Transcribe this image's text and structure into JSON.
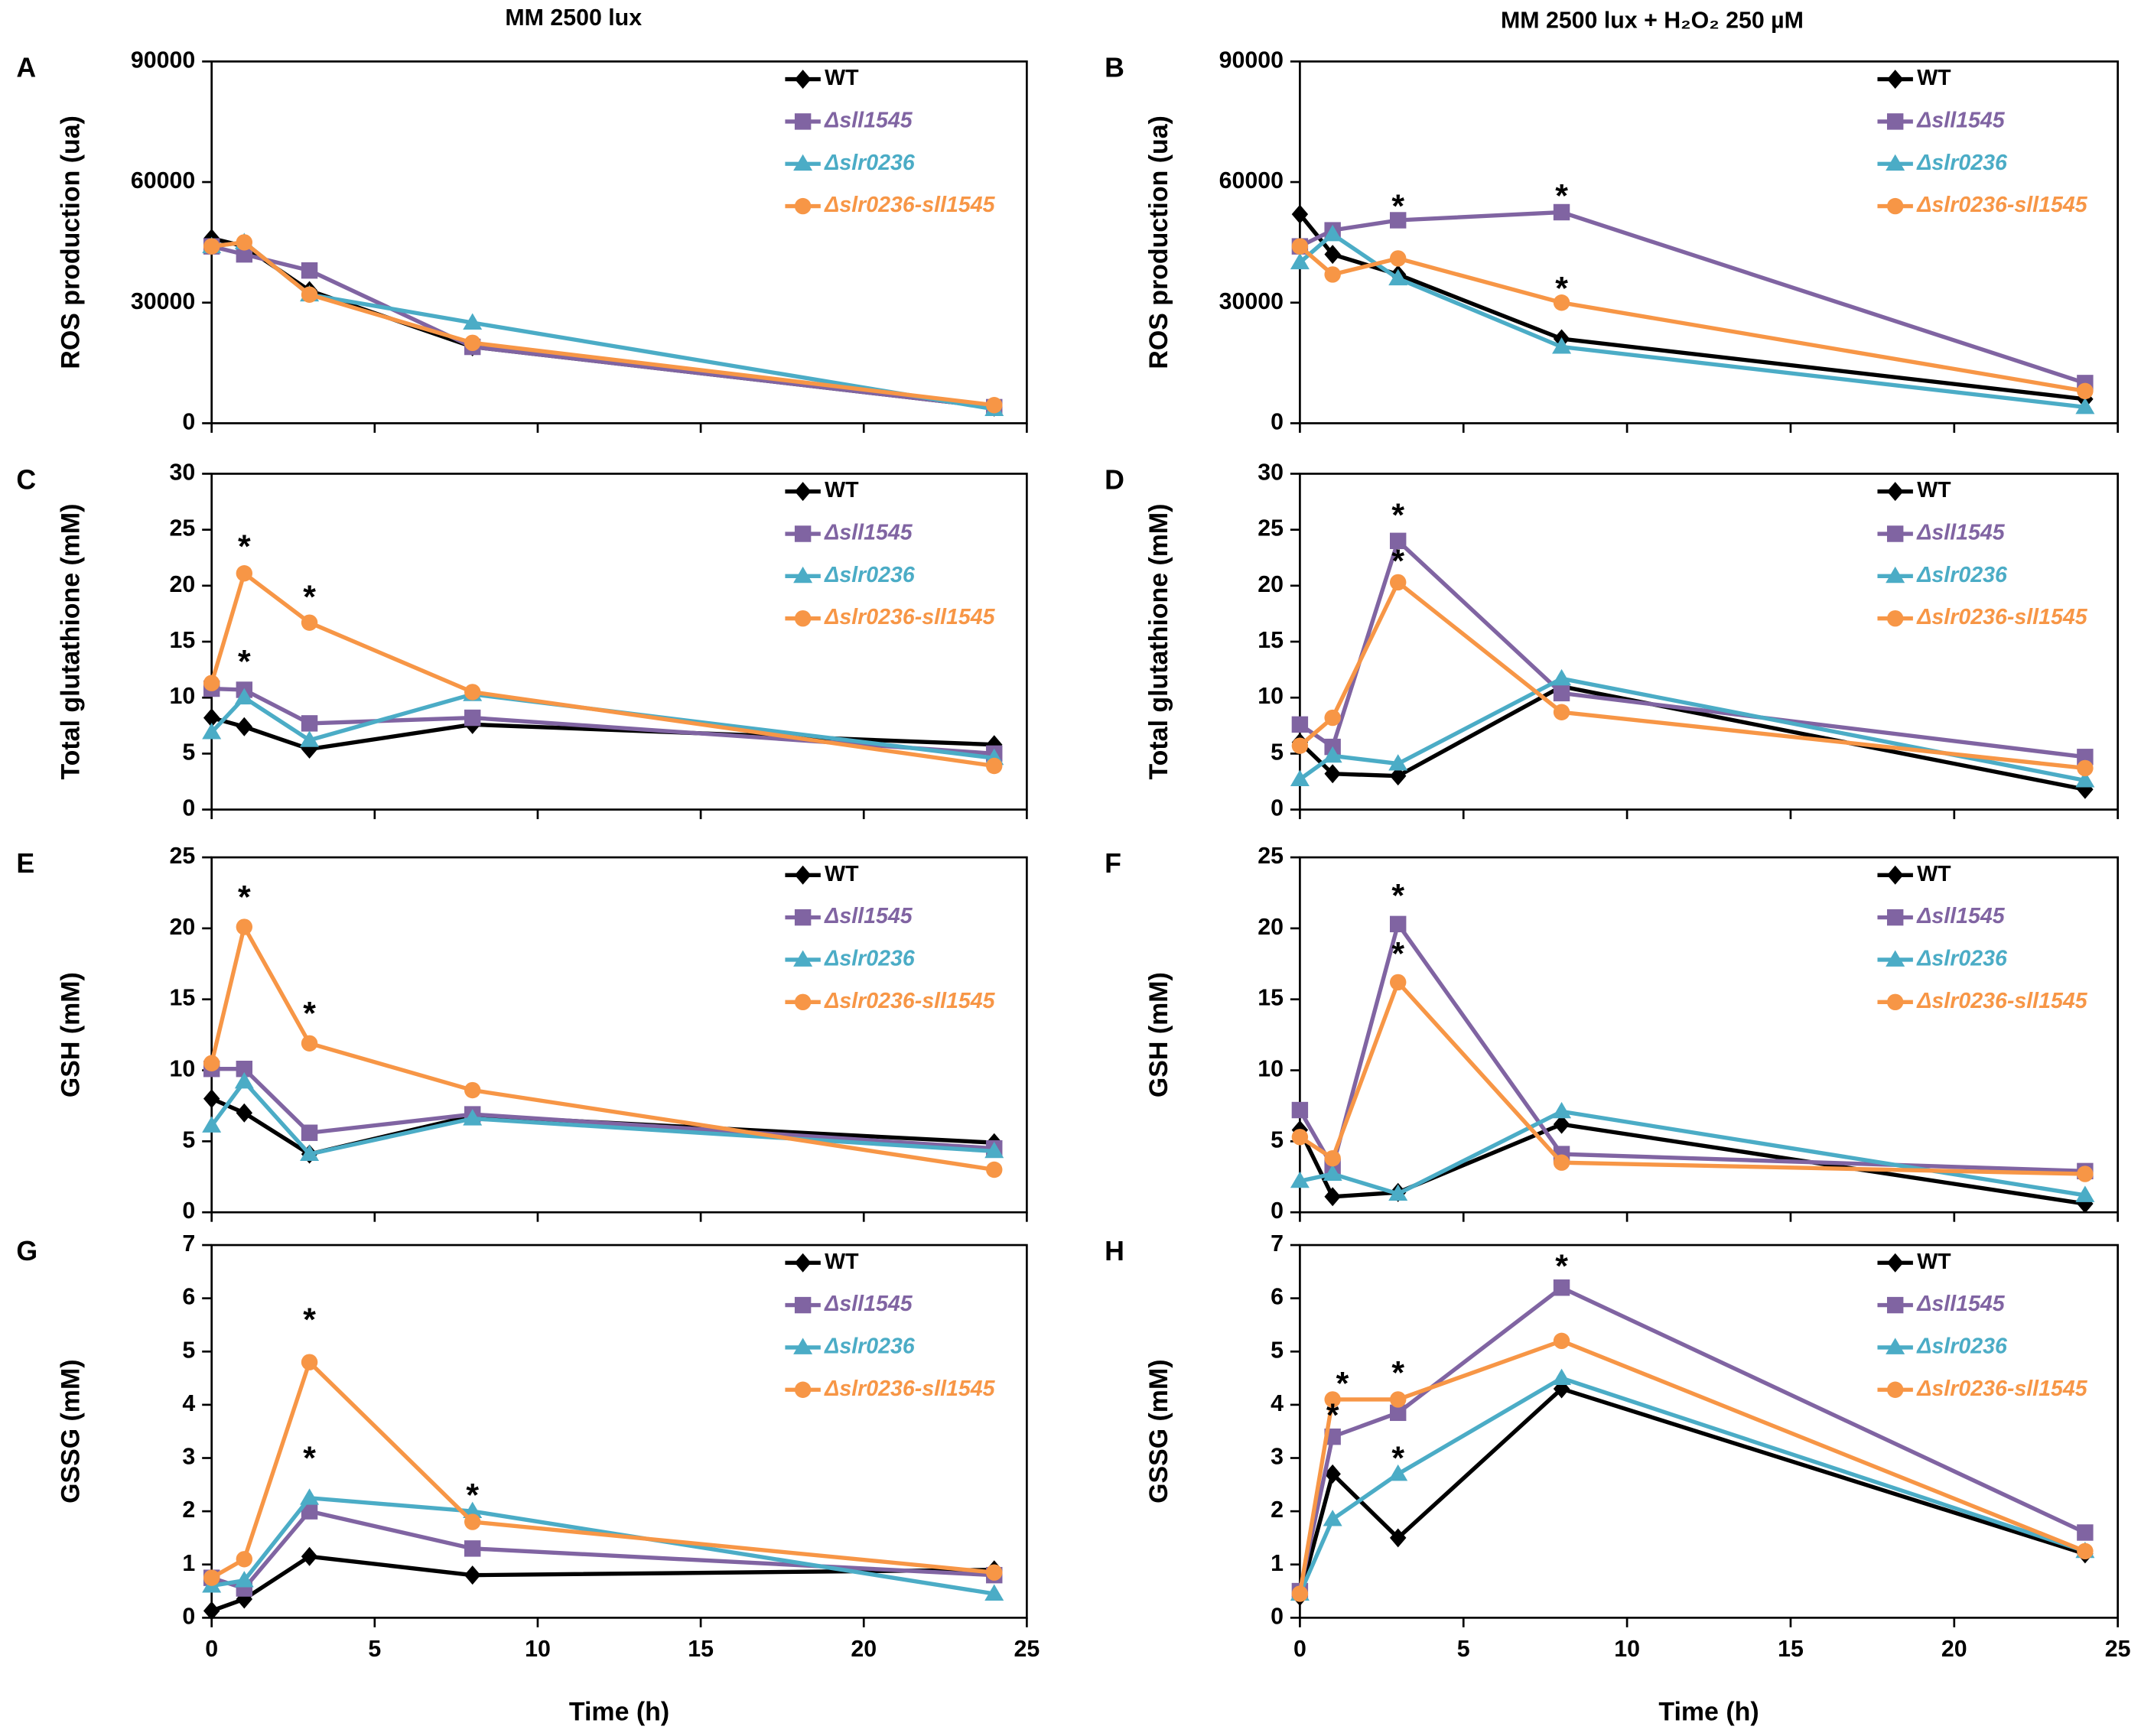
{
  "column_titles": [
    "MM 2500 lux",
    "MM 2500 lux + H₂O₂ 250 µM"
  ],
  "chart_data": [
    {
      "type": "line",
      "label": "A",
      "ylabel": "ROS production (ua)",
      "x": [
        0,
        1,
        3,
        8,
        24
      ],
      "xlim": [
        0,
        25
      ],
      "xticks": [
        0,
        5,
        10,
        15,
        20,
        25
      ],
      "show_xtick_labels": false,
      "ylim": [
        0,
        90000
      ],
      "yticks": [
        0,
        30000,
        60000,
        90000
      ],
      "series": [
        {
          "name": "WT",
          "color": "#000000",
          "marker": "diamond",
          "italic": false,
          "values": [
            46000,
            44000,
            33000,
            19000,
            4000
          ]
        },
        {
          "name": "Δsll1545",
          "color": "#8064a2",
          "marker": "square",
          "italic": true,
          "values": [
            44000,
            42000,
            38000,
            19000,
            4000
          ]
        },
        {
          "name": "Δslr0236",
          "color": "#4bacc6",
          "marker": "triangle",
          "italic": true,
          "values": [
            44000,
            45000,
            32000,
            25000,
            3500
          ]
        },
        {
          "name": "Δslr0236-sll1545",
          "color": "#f79646",
          "marker": "circle",
          "italic": true,
          "values": [
            44000,
            45000,
            32000,
            20000,
            4500
          ]
        }
      ],
      "annotations": []
    },
    {
      "type": "line",
      "label": "B",
      "ylabel": "ROS production (ua)",
      "x": [
        0,
        1,
        3,
        8,
        24
      ],
      "xlim": [
        0,
        25
      ],
      "xticks": [
        0,
        5,
        10,
        15,
        20,
        25
      ],
      "show_xtick_labels": false,
      "ylim": [
        0,
        90000
      ],
      "yticks": [
        0,
        30000,
        60000,
        90000
      ],
      "series": [
        {
          "name": "WT",
          "color": "#000000",
          "marker": "diamond",
          "italic": false,
          "values": [
            52000,
            42000,
            37000,
            21000,
            6000
          ]
        },
        {
          "name": "Δsll1545",
          "color": "#8064a2",
          "marker": "square",
          "italic": true,
          "values": [
            44000,
            48000,
            50500,
            52500,
            10000
          ]
        },
        {
          "name": "Δslr0236",
          "color": "#4bacc6",
          "marker": "triangle",
          "italic": true,
          "values": [
            40000,
            47000,
            36000,
            19000,
            4000
          ]
        },
        {
          "name": "Δslr0236-sll1545",
          "color": "#f79646",
          "marker": "circle",
          "italic": true,
          "values": [
            44000,
            37000,
            41000,
            30000,
            8000
          ]
        }
      ],
      "annotations": [
        {
          "text": "*",
          "x": 3,
          "y": 54000
        },
        {
          "text": "*",
          "x": 8,
          "y": 56500
        },
        {
          "text": "*",
          "x": 8,
          "y": 33500
        }
      ]
    },
    {
      "type": "line",
      "label": "C",
      "ylabel": "Total glutathione (mM)",
      "x": [
        0,
        1,
        3,
        8,
        24
      ],
      "xlim": [
        0,
        25
      ],
      "xticks": [
        0,
        5,
        10,
        15,
        20,
        25
      ],
      "show_xtick_labels": false,
      "ylim": [
        0,
        30
      ],
      "yticks": [
        0,
        5,
        10,
        15,
        20,
        25,
        30
      ],
      "series": [
        {
          "name": "WT",
          "color": "#000000",
          "marker": "diamond",
          "italic": false,
          "values": [
            8.2,
            7.4,
            5.4,
            7.6,
            5.8
          ]
        },
        {
          "name": "Δsll1545",
          "color": "#8064a2",
          "marker": "square",
          "italic": true,
          "values": [
            10.8,
            10.7,
            7.7,
            8.2,
            5.0
          ]
        },
        {
          "name": "Δslr0236",
          "color": "#4bacc6",
          "marker": "triangle",
          "italic": true,
          "values": [
            6.9,
            10.0,
            6.2,
            10.3,
            4.6
          ]
        },
        {
          "name": "Δslr0236-sll1545",
          "color": "#f79646",
          "marker": "circle",
          "italic": true,
          "values": [
            11.3,
            21.1,
            16.7,
            10.5,
            3.9
          ]
        }
      ],
      "annotations": [
        {
          "text": "*",
          "x": 1,
          "y": 23.5
        },
        {
          "text": "*",
          "x": 1,
          "y": 13.2
        },
        {
          "text": "*",
          "x": 3,
          "y": 19
        }
      ]
    },
    {
      "type": "line",
      "label": "D",
      "ylabel": "Total glutathione (mM)",
      "x": [
        0,
        1,
        3,
        8,
        24
      ],
      "xlim": [
        0,
        25
      ],
      "xticks": [
        0,
        5,
        10,
        15,
        20,
        25
      ],
      "show_xtick_labels": false,
      "ylim": [
        0,
        30
      ],
      "yticks": [
        0,
        5,
        10,
        15,
        20,
        25,
        30
      ],
      "series": [
        {
          "name": "WT",
          "color": "#000000",
          "marker": "diamond",
          "italic": false,
          "values": [
            6.0,
            3.2,
            3.0,
            11.0,
            1.8
          ]
        },
        {
          "name": "Δsll1545",
          "color": "#8064a2",
          "marker": "square",
          "italic": true,
          "values": [
            7.6,
            5.6,
            24.0,
            10.4,
            4.7
          ]
        },
        {
          "name": "Δslr0236",
          "color": "#4bacc6",
          "marker": "triangle",
          "italic": true,
          "values": [
            2.7,
            4.8,
            4.1,
            11.7,
            2.6
          ]
        },
        {
          "name": "Δslr0236-sll1545",
          "color": "#f79646",
          "marker": "circle",
          "italic": true,
          "values": [
            5.7,
            8.2,
            20.3,
            8.7,
            3.7
          ]
        }
      ],
      "annotations": [
        {
          "text": "*",
          "x": 3,
          "y": 26.3
        },
        {
          "text": "*",
          "x": 3,
          "y": 22.2
        }
      ]
    },
    {
      "type": "line",
      "label": "E",
      "ylabel": "GSH (mM)",
      "x": [
        0,
        1,
        3,
        8,
        24
      ],
      "xlim": [
        0,
        25
      ],
      "xticks": [
        0,
        5,
        10,
        15,
        20,
        25
      ],
      "show_xtick_labels": false,
      "ylim": [
        0,
        25
      ],
      "yticks": [
        0,
        5,
        10,
        15,
        20,
        25
      ],
      "series": [
        {
          "name": "WT",
          "color": "#000000",
          "marker": "diamond",
          "italic": false,
          "values": [
            8.0,
            7.0,
            4.1,
            6.8,
            4.9
          ]
        },
        {
          "name": "Δsll1545",
          "color": "#8064a2",
          "marker": "square",
          "italic": true,
          "values": [
            10.1,
            10.1,
            5.6,
            6.9,
            4.5
          ]
        },
        {
          "name": "Δslr0236",
          "color": "#4bacc6",
          "marker": "triangle",
          "italic": true,
          "values": [
            6.1,
            9.2,
            4.1,
            6.6,
            4.3
          ]
        },
        {
          "name": "Δslr0236-sll1545",
          "color": "#f79646",
          "marker": "circle",
          "italic": true,
          "values": [
            10.5,
            20.1,
            11.9,
            8.6,
            3.0
          ]
        }
      ],
      "annotations": [
        {
          "text": "*",
          "x": 1,
          "y": 22.2
        },
        {
          "text": "*",
          "x": 3,
          "y": 14
        }
      ]
    },
    {
      "type": "line",
      "label": "F",
      "ylabel": "GSH (mM)",
      "x": [
        0,
        1,
        3,
        8,
        24
      ],
      "xlim": [
        0,
        25
      ],
      "xticks": [
        0,
        5,
        10,
        15,
        20,
        25
      ],
      "show_xtick_labels": false,
      "ylim": [
        0,
        25
      ],
      "yticks": [
        0,
        5,
        10,
        15,
        20,
        25
      ],
      "series": [
        {
          "name": "WT",
          "color": "#000000",
          "marker": "diamond",
          "italic": false,
          "values": [
            5.8,
            1.1,
            1.4,
            6.2,
            0.6
          ]
        },
        {
          "name": "Δsll1545",
          "color": "#8064a2",
          "marker": "square",
          "italic": true,
          "values": [
            7.2,
            3.2,
            20.3,
            4.1,
            2.9
          ]
        },
        {
          "name": "Δslr0236",
          "color": "#4bacc6",
          "marker": "triangle",
          "italic": true,
          "values": [
            2.2,
            2.7,
            1.3,
            7.1,
            1.2
          ]
        },
        {
          "name": "Δslr0236-sll1545",
          "color": "#f79646",
          "marker": "circle",
          "italic": true,
          "values": [
            5.3,
            3.8,
            16.2,
            3.5,
            2.7
          ]
        }
      ],
      "annotations": [
        {
          "text": "*",
          "x": 3,
          "y": 22.3
        },
        {
          "text": "*",
          "x": 3,
          "y": 18.2
        }
      ]
    },
    {
      "type": "line",
      "label": "G",
      "ylabel": "GSSG (mM)",
      "xlabel": "Time (h)",
      "x": [
        0,
        1,
        3,
        8,
        24
      ],
      "xlim": [
        0,
        25
      ],
      "xticks": [
        0,
        5,
        10,
        15,
        20,
        25
      ],
      "show_xtick_labels": true,
      "ylim": [
        0,
        7
      ],
      "yticks": [
        0,
        1,
        2,
        3,
        4,
        5,
        6,
        7
      ],
      "series": [
        {
          "name": "WT",
          "color": "#000000",
          "marker": "diamond",
          "italic": false,
          "values": [
            0.13,
            0.35,
            1.15,
            0.8,
            0.9
          ]
        },
        {
          "name": "Δsll1545",
          "color": "#8064a2",
          "marker": "square",
          "italic": true,
          "values": [
            0.75,
            0.55,
            2.0,
            1.3,
            0.8
          ]
        },
        {
          "name": "Δslr0236",
          "color": "#4bacc6",
          "marker": "triangle",
          "italic": true,
          "values": [
            0.6,
            0.7,
            2.25,
            2.0,
            0.45
          ]
        },
        {
          "name": "Δslr0236-sll1545",
          "color": "#f79646",
          "marker": "circle",
          "italic": true,
          "values": [
            0.75,
            1.1,
            4.8,
            1.8,
            0.85
          ]
        }
      ],
      "annotations": [
        {
          "text": "*",
          "x": 3,
          "y": 5.6
        },
        {
          "text": "*",
          "x": 3,
          "y": 3.0
        },
        {
          "text": "*",
          "x": 8,
          "y": 2.3
        }
      ]
    },
    {
      "type": "line",
      "label": "H",
      "ylabel": "GSSG (mM)",
      "xlabel": "Time (h)",
      "x": [
        0,
        1,
        3,
        8,
        24
      ],
      "xlim": [
        0,
        25
      ],
      "xticks": [
        0,
        5,
        10,
        15,
        20,
        25
      ],
      "show_xtick_labels": true,
      "ylim": [
        0,
        7
      ],
      "yticks": [
        0,
        1,
        2,
        3,
        4,
        5,
        6,
        7
      ],
      "series": [
        {
          "name": "WT",
          "color": "#000000",
          "marker": "diamond",
          "italic": false,
          "values": [
            0.4,
            2.7,
            1.5,
            4.3,
            1.2
          ]
        },
        {
          "name": "Δsll1545",
          "color": "#8064a2",
          "marker": "square",
          "italic": true,
          "values": [
            0.5,
            3.4,
            3.85,
            6.2,
            1.6
          ]
        },
        {
          "name": "Δslr0236",
          "color": "#4bacc6",
          "marker": "triangle",
          "italic": true,
          "values": [
            0.45,
            1.85,
            2.7,
            4.5,
            1.25
          ]
        },
        {
          "name": "Δslr0236-sll1545",
          "color": "#f79646",
          "marker": "circle",
          "italic": true,
          "values": [
            0.45,
            4.1,
            4.1,
            5.2,
            1.25
          ]
        }
      ],
      "annotations": [
        {
          "text": "*",
          "x": 8,
          "y": 6.6
        },
        {
          "text": "*",
          "x": 1.3,
          "y": 4.4
        },
        {
          "text": "*",
          "x": 1,
          "y": 3.8
        },
        {
          "text": "*",
          "x": 3,
          "y": 4.6
        },
        {
          "text": "*",
          "x": 3,
          "y": 3.0
        }
      ]
    }
  ]
}
